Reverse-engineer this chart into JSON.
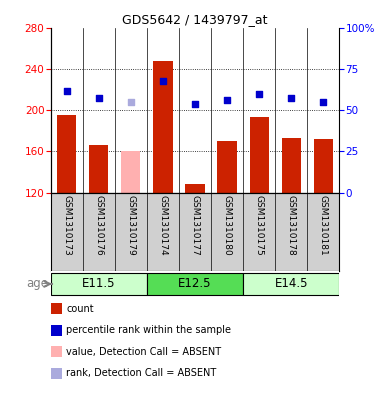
{
  "title": "GDS5642 / 1439797_at",
  "samples": [
    "GSM1310173",
    "GSM1310176",
    "GSM1310179",
    "GSM1310174",
    "GSM1310177",
    "GSM1310180",
    "GSM1310175",
    "GSM1310178",
    "GSM1310181"
  ],
  "bar_values": [
    195,
    166,
    160,
    248,
    128,
    170,
    193,
    173,
    172
  ],
  "bar_colors": [
    "#cc2200",
    "#cc2200",
    "#ffb0b0",
    "#cc2200",
    "#cc2200",
    "#cc2200",
    "#cc2200",
    "#cc2200",
    "#cc2200"
  ],
  "dot_values": [
    218,
    212,
    208,
    228,
    206,
    210,
    216,
    212,
    208
  ],
  "dot_colors": [
    "#0000cc",
    "#0000cc",
    "#aaaadd",
    "#0000cc",
    "#0000cc",
    "#0000cc",
    "#0000cc",
    "#0000cc",
    "#0000cc"
  ],
  "ylim_left": [
    120,
    280
  ],
  "yticks_left": [
    120,
    160,
    200,
    240,
    280
  ],
  "yticks_right": [
    0,
    25,
    50,
    75,
    100
  ],
  "ylim_right": [
    0,
    100
  ],
  "groups": [
    {
      "label": "E11.5",
      "start": 0,
      "end": 3,
      "color": "#ccffcc"
    },
    {
      "label": "E12.5",
      "start": 3,
      "end": 6,
      "color": "#55dd55"
    },
    {
      "label": "E14.5",
      "start": 6,
      "end": 9,
      "color": "#ccffcc"
    }
  ],
  "age_label": "age",
  "legend_items": [
    {
      "color": "#cc2200",
      "label": "count"
    },
    {
      "color": "#0000cc",
      "label": "percentile rank within the sample"
    },
    {
      "color": "#ffb0b0",
      "label": "value, Detection Call = ABSENT"
    },
    {
      "color": "#aaaadd",
      "label": "rank, Detection Call = ABSENT"
    }
  ],
  "bg_color": "#d0d0d0",
  "plot_bg": "#ffffff",
  "bar_bottom": 120,
  "rank_min": 0,
  "rank_max": 100
}
